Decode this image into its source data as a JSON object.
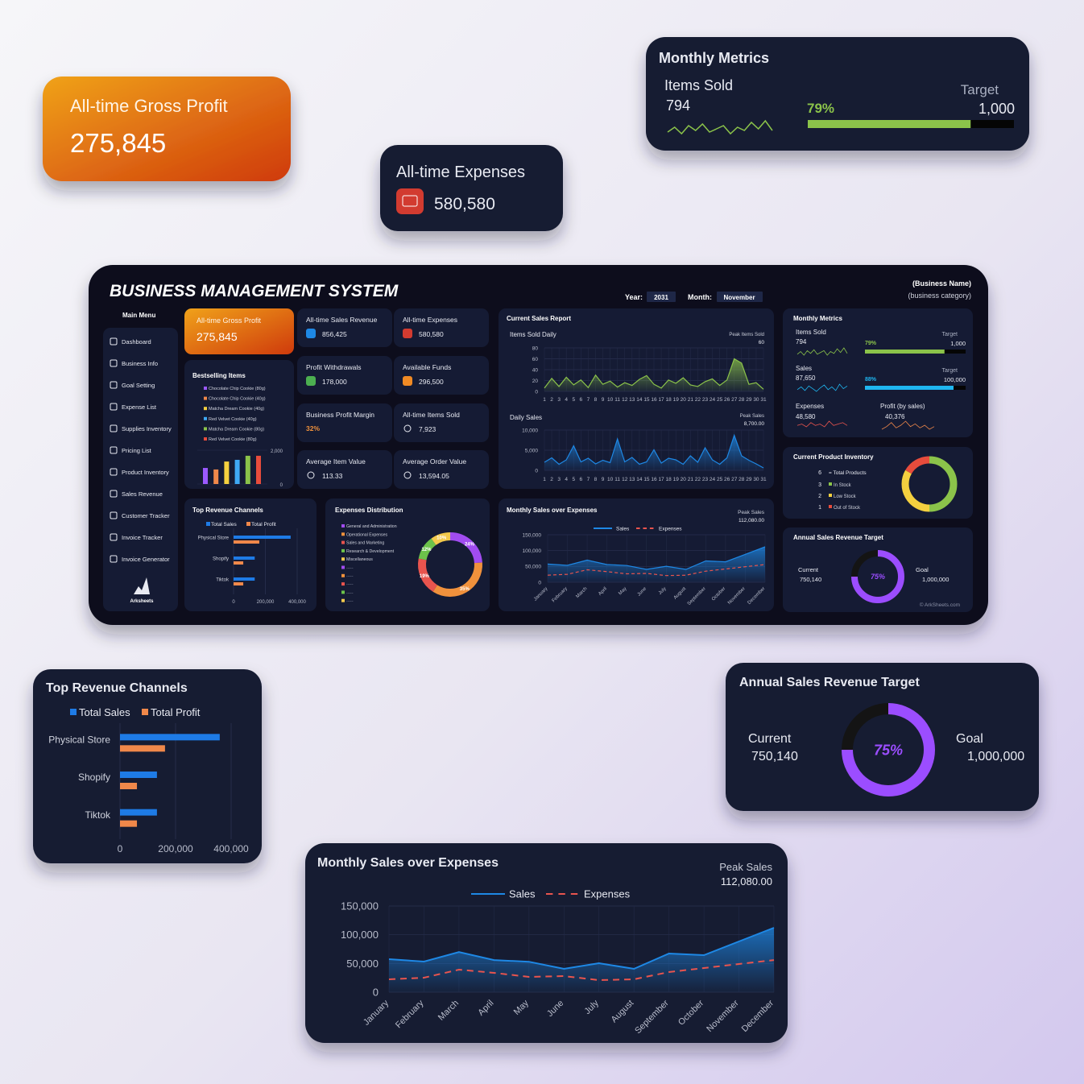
{
  "gross_profit": {
    "title": "All-time Gross Profit",
    "value": "275,845"
  },
  "expenses": {
    "title": "All-time Expenses",
    "value": "580,580"
  },
  "monthly_metrics": {
    "title": "Monthly Metrics",
    "items_sold": {
      "label": "Items Sold",
      "value": "794",
      "target_label": "Target",
      "target": "1,000",
      "percent": {
        "value": 79,
        "label": "79%"
      },
      "color": "#8bc34a",
      "trend": [
        5,
        8,
        4,
        9,
        6,
        10,
        5,
        7,
        9,
        4,
        8,
        6,
        11,
        7,
        12,
        6
      ]
    },
    "sales": {
      "label": "Sales",
      "value": "87,650",
      "target_label": "Target",
      "target": "100,000",
      "percent": {
        "value": 88,
        "label": "88%"
      },
      "color": "#1fb6f0",
      "trend": [
        6,
        9,
        5,
        10,
        7,
        4,
        8,
        11,
        6,
        9,
        5,
        12,
        7,
        10
      ]
    },
    "expenses": {
      "label": "Expenses",
      "value": "48,580",
      "color": "#e8544e",
      "trend": [
        4,
        5,
        3,
        6,
        4,
        5,
        3,
        7,
        4,
        5,
        6,
        4
      ]
    },
    "profit": {
      "label": "Profit (by sales)",
      "value": "40,376",
      "color": "#f0884a",
      "trend": [
        3,
        5,
        8,
        4,
        6,
        9,
        5,
        7,
        4,
        6,
        3,
        5
      ]
    }
  },
  "dashboard": {
    "title": "BUSINESS MANAGEMENT SYSTEM",
    "year_label": "Year:",
    "year": "2031",
    "month_label": "Month:",
    "month": "November",
    "business_name": "(Business Name)",
    "business_category": "(business category)",
    "menu_title": "Main Menu",
    "menu": [
      "Dashboard",
      "Business Info",
      "Goal Setting",
      "Expense List",
      "Supplies Inventory",
      "Pricing List",
      "Product Inventory",
      "Sales Revenue",
      "Customer Tracker",
      "Invoice Tracker",
      "Invoice Generator"
    ],
    "logo": "Arksheets",
    "copyright": "© ArkSheets.com",
    "kpis": [
      {
        "title": "All-time Sales Revenue",
        "value": "856,425"
      },
      {
        "title": "Profit Withdrawals",
        "value": "178,000"
      },
      {
        "title": "Available Funds",
        "value": "296,500"
      },
      {
        "title": "Business Profit Margin",
        "value": "32%"
      },
      {
        "title": "All-time Items Sold",
        "value": "7,923"
      },
      {
        "title": "Average Item Value",
        "value": "113.33"
      },
      {
        "title": "Average Order Value",
        "value": "13,594.05"
      }
    ]
  },
  "bestselling": {
    "title": "Bestselling Items",
    "categories": [
      "Chocolate Chip Cookie (80g)",
      "Chocolate Chip Cookie (40g)",
      "Matcha Dream Cookie (40g)",
      "Red Velvet Cookie (40g)",
      "Matcha Dream Cookie (80g)",
      "Red Velvet Cookie (80g)"
    ],
    "values": [
      950,
      860,
      1330,
      1430,
      1670,
      1670
    ],
    "colors": [
      "#9b59ff",
      "#f0884a",
      "#f4d03f",
      "#3fa9f5",
      "#8bc34a",
      "#e74c3c"
    ],
    "ylim": [
      0,
      2000
    ],
    "yticks": [
      0,
      {
        "value": 2000,
        "label": "2,000"
      }
    ]
  },
  "sales_report": {
    "title": "Current Sales Report",
    "items_daily": {
      "title": "Items Sold Daily",
      "peak_label": "Peak Items Sold",
      "peak": "60",
      "color": "#8bc34a",
      "x": [
        1,
        2,
        3,
        4,
        5,
        6,
        7,
        8,
        9,
        10,
        11,
        12,
        13,
        14,
        15,
        16,
        17,
        18,
        19,
        20,
        21,
        22,
        23,
        24,
        25,
        26,
        27,
        28,
        29,
        30,
        31
      ],
      "values": [
        6,
        24,
        9,
        26,
        12,
        21,
        7,
        30,
        13,
        19,
        8,
        16,
        11,
        22,
        29,
        13,
        6,
        21,
        15,
        25,
        12,
        9,
        18,
        23,
        11,
        21,
        60,
        52,
        13,
        16,
        4
      ],
      "ylim": [
        0,
        80
      ],
      "yticks": [
        0,
        20,
        40,
        60,
        80
      ]
    },
    "daily_sales": {
      "title": "Daily Sales",
      "peak_label": "Peak Sales",
      "peak": "8,700.00",
      "color": "#1e88e5",
      "x": [
        1,
        2,
        3,
        4,
        5,
        6,
        7,
        8,
        9,
        10,
        11,
        12,
        13,
        14,
        15,
        16,
        17,
        18,
        19,
        20,
        21,
        22,
        23,
        24,
        25,
        26,
        27,
        28,
        29,
        30,
        31
      ],
      "values": [
        2000,
        3100,
        1500,
        2600,
        6100,
        2100,
        3000,
        1600,
        2500,
        1900,
        7800,
        2100,
        3200,
        1500,
        2100,
        5100,
        1800,
        3000,
        2600,
        1500,
        3600,
        2000,
        5600,
        2600,
        1500,
        3100,
        8700,
        3600,
        2500,
        1600,
        600
      ],
      "ylim": [
        0,
        10000
      ],
      "yticks": [
        0,
        {
          "value": 5000,
          "label": "5,000"
        },
        {
          "value": 10000,
          "label": "10,000"
        }
      ]
    }
  },
  "inventory": {
    "title": "Current Product Inventory",
    "total": 6,
    "total_label": "= Total Products",
    "categories": [
      "In Stock",
      "Low Stock",
      "Out of Stock"
    ],
    "values": [
      3,
      2,
      1
    ],
    "colors": [
      "#8bc34a",
      "#f4d03f",
      "#e74c3c"
    ]
  },
  "annual_target": {
    "title": "Annual Sales Revenue Target",
    "current_label": "Current",
    "current": {
      "value": 750140,
      "label": "750,140"
    },
    "goal_label": "Goal",
    "goal": {
      "value": 1000000,
      "label": "1,000,000"
    },
    "percent_label": "75%",
    "color": "#9b4dff"
  },
  "top_channels": {
    "type": "bar",
    "title": "Top Revenue Channels",
    "categories": [
      "Physical Store",
      "Shopify",
      "Tiktok"
    ],
    "series": [
      {
        "name": "Total Sales",
        "color": "#1e7be6",
        "values": [
          359000,
          133000,
          133000
        ]
      },
      {
        "name": "Total Profit",
        "color": "#f0884a",
        "values": [
          162000,
          61000,
          61000
        ]
      }
    ],
    "xlim": [
      0,
      400000
    ],
    "xticks": [
      0,
      {
        "value": 200000,
        "label": "200,000"
      },
      {
        "value": 400000,
        "label": "400,000"
      }
    ]
  },
  "expenses_distribution": {
    "type": "pie",
    "title": "Expenses Distribution",
    "categories": [
      "General and Administration",
      "Operational Expenses",
      "Sales and Marketing",
      "Research & Development",
      "Miscellaneous"
    ],
    "values": [
      24,
      35,
      19,
      12,
      10
    ],
    "value_labels": [
      "24%",
      "35%",
      "19%",
      "12%",
      "10%"
    ],
    "colors": [
      "#a14cf0",
      "#f0913c",
      "#e8544e",
      "#6cc24a",
      "#f2c94c"
    ],
    "placeholders": [
      "-----",
      "-----",
      "-----",
      "-----",
      "-----"
    ]
  },
  "monthly_sales": {
    "type": "line",
    "title": "Monthly Sales over Expenses",
    "peak_label": "Peak Sales",
    "peak": "112,080.00",
    "categories": [
      "January",
      "February",
      "March",
      "April",
      "May",
      "June",
      "July",
      "August",
      "September",
      "October",
      "November",
      "December"
    ],
    "series": [
      {
        "name": "Sales",
        "color": "#1e88e5",
        "style": "solid",
        "values": [
          57500,
          53300,
          70000,
          56000,
          53000,
          40600,
          50500,
          40600,
          67300,
          64500,
          88300,
          112080
        ]
      },
      {
        "name": "Expenses",
        "color": "#e8544e",
        "style": "dashed",
        "values": [
          22400,
          25200,
          39300,
          33600,
          26600,
          28000,
          21000,
          22400,
          35000,
          42000,
          49000,
          56000
        ]
      }
    ],
    "ylim": [
      0,
      150000
    ],
    "yticks": [
      0,
      {
        "value": 50000,
        "label": "50,000"
      },
      {
        "value": 100000,
        "label": "100,000"
      },
      {
        "value": 150000,
        "label": "150,000"
      }
    ]
  }
}
